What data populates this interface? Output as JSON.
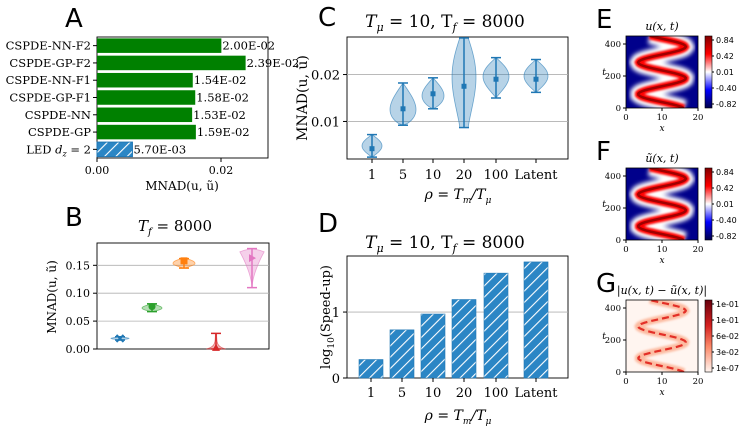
{
  "chart_data": [
    {
      "panel": "A",
      "type": "bar",
      "orientation": "horizontal",
      "categories": [
        "CSPDE-NN-F2",
        "CSPDE-GP-F2",
        "CSPDE-NN-F1",
        "CSPDE-GP-F1",
        "CSPDE-NN",
        "CSPDE-GP",
        "LED d_z = 2"
      ],
      "values": [
        0.02,
        0.0239,
        0.0154,
        0.0158,
        0.0153,
        0.0159,
        0.0057
      ],
      "value_labels": [
        "2.00E-02",
        "2.39E-02",
        "1.54E-02",
        "1.58E-02",
        "1.53E-02",
        "1.59E-02",
        "5.70E-03"
      ],
      "xlabel": "MNAD(u, ũ)",
      "xlim": [
        0,
        0.0275
      ],
      "xticks": [
        "0.00",
        "0.02"
      ],
      "colors": [
        "#008000",
        "#1f77b4"
      ]
    },
    {
      "panel": "B",
      "type": "violin",
      "title": "T_f = 8000",
      "ylabel": "MNAD(u, ũ)",
      "ylim": [
        0,
        0.19
      ],
      "yticks": [
        "0.00",
        "0.05",
        "0.10",
        "0.15"
      ],
      "series": [
        {
          "color": "#1f77b4",
          "marker": "x",
          "median": 0.019,
          "min": 0.016,
          "max": 0.022
        },
        {
          "color": "#2ca02c",
          "marker": "o",
          "median": 0.076,
          "min": 0.067,
          "max": 0.081
        },
        {
          "color": "#ff7f0e",
          "marker": "s",
          "median": 0.158,
          "min": 0.145,
          "max": 0.162
        },
        {
          "color": "#d62728",
          "marker": "^",
          "median": 0.002,
          "min": 0.0,
          "max": 0.028
        },
        {
          "color": "#e377c2",
          "marker": ">",
          "median": 0.163,
          "min": 0.11,
          "max": 0.18
        }
      ]
    },
    {
      "panel": "C",
      "type": "violin",
      "title": "T_μ = 10,  T_f = 8000",
      "xlabel": "ρ = T_m / T_μ",
      "ylabel": "MNAD(u, ũ)",
      "categories": [
        "1",
        "5",
        "10",
        "20",
        "100",
        "Latent"
      ],
      "ylim": [
        0.002,
        0.028
      ],
      "yticks": [
        "0.01",
        "0.02"
      ],
      "series": [
        {
          "name": "1",
          "median": 0.0042,
          "min": 0.0024,
          "max": 0.0072
        },
        {
          "name": "5",
          "median": 0.0127,
          "min": 0.0092,
          "max": 0.0182
        },
        {
          "name": "10",
          "median": 0.0159,
          "min": 0.0127,
          "max": 0.0193
        },
        {
          "name": "20",
          "median": 0.0175,
          "min": 0.0087,
          "max": 0.0278
        },
        {
          "name": "100",
          "median": 0.019,
          "min": 0.015,
          "max": 0.0236
        },
        {
          "name": "Latent",
          "median": 0.019,
          "min": 0.0162,
          "max": 0.0232
        }
      ],
      "color": "#1f77b4"
    },
    {
      "panel": "D",
      "type": "bar",
      "title": "T_μ = 10,  T_f = 8000",
      "xlabel": "ρ = T_m / T_μ",
      "ylabel": "log10(Speed-up)",
      "categories": [
        "1",
        "5",
        "10",
        "20",
        "100",
        "Latent"
      ],
      "values": [
        0.28,
        0.73,
        0.97,
        1.19,
        1.59,
        1.76
      ],
      "ylim": [
        0,
        1.85
      ],
      "yticks": [
        "0",
        "1"
      ],
      "color": "#1f77b4",
      "hatch": "diagonal"
    },
    {
      "panel": "E",
      "type": "heatmap",
      "title": "u(x, t)",
      "xlabel": "x",
      "ylabel": "t",
      "xticks": [
        "0",
        "10",
        "20"
      ],
      "yticks": [
        "0",
        "200",
        "400"
      ],
      "colorbar_ticks": [
        "0.84",
        "0.42",
        "0.01",
        "-0.40",
        "-0.82"
      ]
    },
    {
      "panel": "F",
      "type": "heatmap",
      "title": "ũ(x, t)",
      "xlabel": "x",
      "ylabel": "t",
      "xticks": [
        "0",
        "10",
        "20"
      ],
      "yticks": [
        "0",
        "200",
        "400"
      ],
      "colorbar_ticks": [
        "0.84",
        "0.42",
        "0.01",
        "-0.40",
        "-0.82"
      ]
    },
    {
      "panel": "G",
      "type": "heatmap",
      "title": "|u(x, t) − ũ(x, t)|",
      "xlabel": "x",
      "ylabel": "t",
      "xticks": [
        "0",
        "10",
        "20"
      ],
      "yticks": [
        "0",
        "200",
        "400"
      ],
      "colorbar_ticks": [
        "1e-01",
        "1e-01",
        "6e-02",
        "3e-02",
        "1e-07"
      ]
    }
  ],
  "labels": {
    "A": "A",
    "B": "B",
    "C": "C",
    "D": "D",
    "E": "E",
    "F": "F",
    "G": "G",
    "a_cat_prefix": "LED ",
    "a_dz": "d",
    "a_dz_sub": "z",
    "a_dz_eq": " = 2",
    "b_title": "T",
    "b_title_sub": "f",
    "b_title_rest": " = 8000",
    "c_title": "T",
    "c_title_sub_mu": "μ",
    "c_title_mid": " = 10,  T",
    "c_title_sub_f": "f",
    "c_title_rest": " = 8000",
    "rho_label": "ρ = T",
    "rho_sub_m": "m",
    "rho_slash": "/T",
    "rho_sub_mu": "μ",
    "mnad_label": "MNAD(u, ũ)",
    "speedup_label": "log",
    "speedup_sub": "10",
    "speedup_rest": "(Speed-up)",
    "e_title": "u(x, t)",
    "f_title": "ũ(x, t)",
    "g_title": "|u(x, t) − ũ(x, t)|",
    "x_sym": "x",
    "t_sym": "t"
  }
}
